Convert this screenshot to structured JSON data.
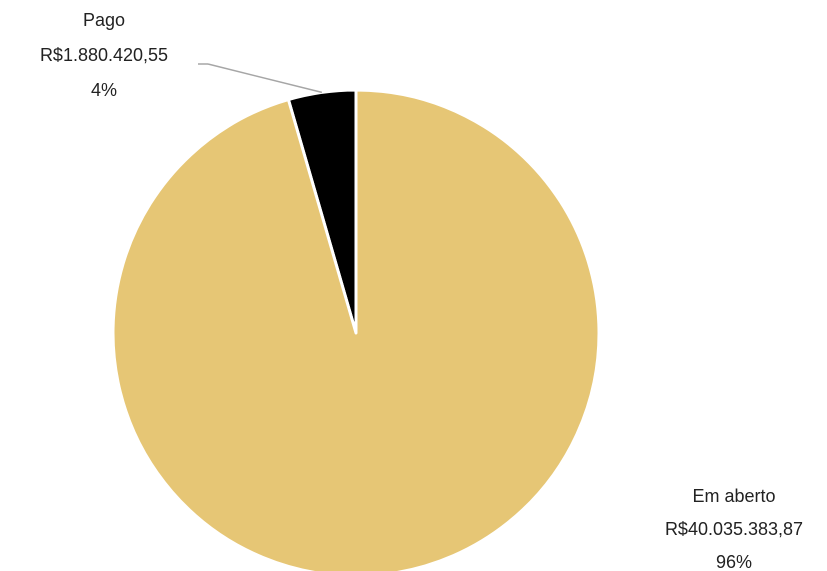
{
  "chart_data": {
    "type": "pie",
    "title": "",
    "slices": [
      {
        "name": "Pago",
        "value": 1880420.55,
        "value_label": "R$1.880.420,55",
        "percent_label": "4%",
        "color": "#000000"
      },
      {
        "name": "Em aberto",
        "value": 40035383.87,
        "value_label": "R$40.035.383,87",
        "percent_label": "96%",
        "color": "#E6C675"
      }
    ],
    "slice_border_color": "#FFFFFF",
    "leader_line_color": "#A6A6A6",
    "legend": "none"
  }
}
